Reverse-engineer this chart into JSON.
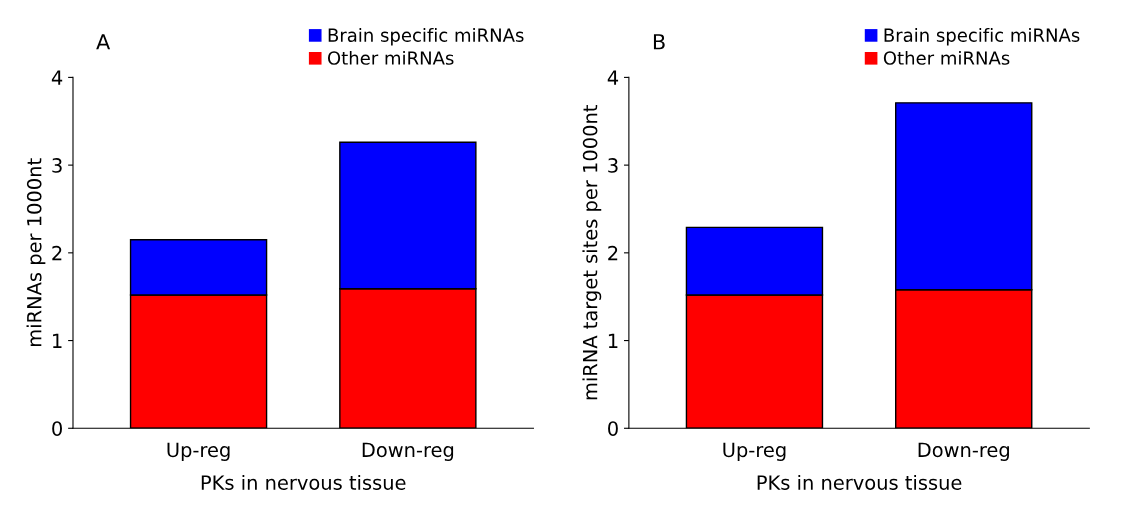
{
  "chart_data": [
    {
      "type": "bar",
      "title": "A",
      "categories": [
        "Up-reg",
        "Down-reg"
      ],
      "stacked": true,
      "xlabel": "PKs in nervous tissue",
      "ylabel": "miRNAs per 1000nt",
      "ylim": [
        0,
        4
      ],
      "yticks": [
        0,
        1,
        2,
        3,
        4
      ],
      "grid": false,
      "legend": "top right",
      "series": [
        {
          "name": "Other miRNAs",
          "color": "#ff0000",
          "values": [
            1.52,
            1.59
          ]
        },
        {
          "name": "Brain specific miRNAs",
          "color": "#0000ff",
          "values": [
            0.63,
            1.67
          ]
        }
      ]
    },
    {
      "type": "bar",
      "title": "B",
      "categories": [
        "Up-reg",
        "Down-reg"
      ],
      "stacked": true,
      "xlabel": "PKs in nervous tissue",
      "ylabel": "miRNA target sites per 1000nt",
      "ylim": [
        0,
        4
      ],
      "yticks": [
        0,
        1,
        2,
        3,
        4
      ],
      "grid": false,
      "legend": "top right",
      "series": [
        {
          "name": "Other miRNAs",
          "color": "#ff0000",
          "values": [
            1.52,
            1.58
          ]
        },
        {
          "name": "Brain specific miRNAs",
          "color": "#0000ff",
          "values": [
            0.77,
            2.13
          ]
        }
      ]
    }
  ]
}
